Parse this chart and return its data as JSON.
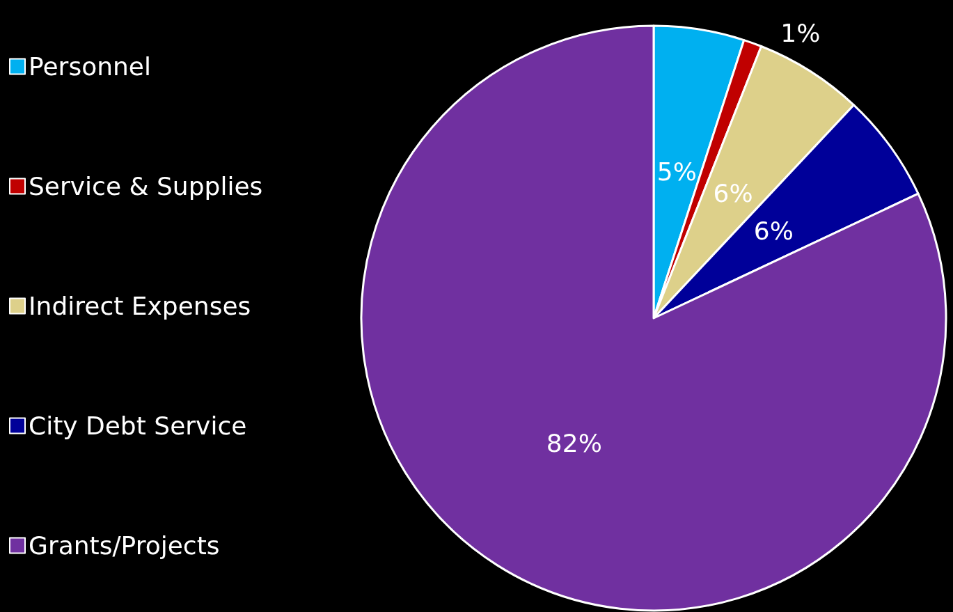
{
  "chart_data": {
    "type": "pie",
    "categories": [
      "Personnel",
      "Service & Supplies",
      "Indirect Expenses",
      "City Debt Service",
      "Grants/Projects"
    ],
    "values": [
      5,
      1,
      6,
      6,
      82
    ],
    "colors": [
      "#00b0f0",
      "#c00000",
      "#ddd08a",
      "#000099",
      "#7030a0"
    ],
    "value_labels": [
      "5%",
      "1%",
      "6%",
      "6%",
      "82%"
    ],
    "legend": "left"
  }
}
